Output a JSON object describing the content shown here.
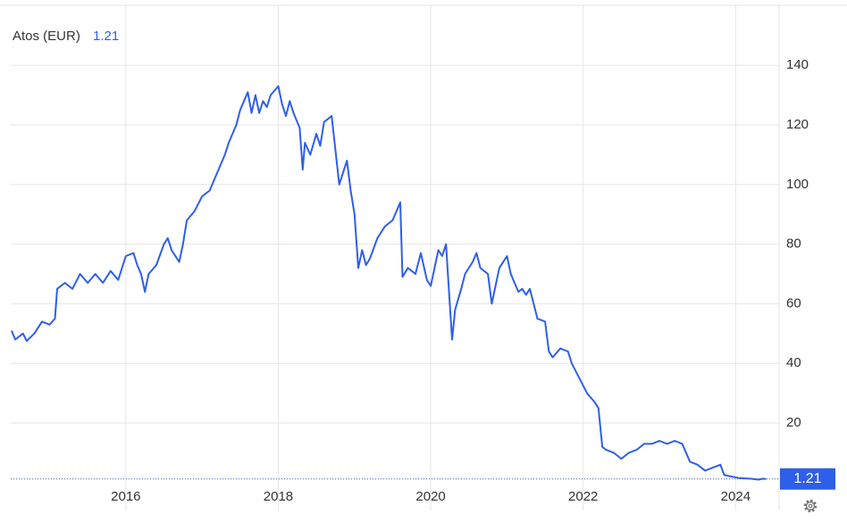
{
  "chart_data": {
    "type": "line",
    "title": "Atos (EUR)",
    "last_value_label": "1.21",
    "xlim": [
      2014.49,
      2024.57
    ],
    "xticks": [
      2016,
      2018,
      2020,
      2022,
      2024
    ],
    "ylim": [
      0,
      160
    ],
    "yticks": [
      20,
      40,
      60,
      80,
      100,
      120,
      140
    ],
    "grid": true,
    "x": [
      2014.5,
      2014.55,
      2014.65,
      2014.7,
      2014.8,
      2014.9,
      2015.0,
      2015.07,
      2015.1,
      2015.2,
      2015.3,
      2015.4,
      2015.5,
      2015.6,
      2015.7,
      2015.8,
      2015.9,
      2016.0,
      2016.1,
      2016.15,
      2016.2,
      2016.25,
      2016.3,
      2016.4,
      2016.5,
      2016.55,
      2016.6,
      2016.7,
      2016.75,
      2016.8,
      2016.9,
      2017.0,
      2017.1,
      2017.2,
      2017.3,
      2017.35,
      2017.45,
      2017.5,
      2017.6,
      2017.65,
      2017.7,
      2017.75,
      2017.8,
      2017.85,
      2017.9,
      2018.0,
      2018.05,
      2018.1,
      2018.15,
      2018.2,
      2018.28,
      2018.32,
      2018.35,
      2018.42,
      2018.5,
      2018.55,
      2018.6,
      2018.7,
      2018.8,
      2018.85,
      2018.9,
      2018.95,
      2019.0,
      2019.05,
      2019.1,
      2019.15,
      2019.2,
      2019.3,
      2019.4,
      2019.5,
      2019.6,
      2019.63,
      2019.7,
      2019.8,
      2019.87,
      2019.95,
      2020.0,
      2020.05,
      2020.1,
      2020.15,
      2020.2,
      2020.25,
      2020.28,
      2020.32,
      2020.4,
      2020.45,
      2020.55,
      2020.6,
      2020.65,
      2020.75,
      2020.8,
      2020.85,
      2020.9,
      2020.95,
      2021.0,
      2021.05,
      2021.1,
      2021.15,
      2021.2,
      2021.25,
      2021.3,
      2021.35,
      2021.4,
      2021.5,
      2021.55,
      2021.6,
      2021.7,
      2021.8,
      2021.85,
      2021.95,
      2022.05,
      2022.15,
      2022.2,
      2022.25,
      2022.3,
      2022.4,
      2022.5,
      2022.6,
      2022.7,
      2022.8,
      2022.9,
      2023.0,
      2023.1,
      2023.2,
      2023.3,
      2023.4,
      2023.5,
      2023.6,
      2023.7,
      2023.8,
      2023.85,
      2023.95,
      2024.05,
      2024.2,
      2024.3,
      2024.35,
      2024.4
    ],
    "series": [
      {
        "name": "Atos (EUR)",
        "color": "#2f5fe8",
        "values": [
          51,
          48,
          50,
          47.5,
          50,
          54,
          53,
          55,
          65,
          67,
          65,
          70,
          67,
          70,
          67,
          71,
          68,
          76,
          77,
          73,
          70,
          64,
          70,
          73,
          80,
          82,
          78,
          74,
          80,
          88,
          91,
          96,
          98,
          104,
          110,
          114,
          120,
          125,
          131,
          124,
          130,
          124,
          128,
          126,
          130,
          133,
          127,
          123,
          128,
          124,
          119,
          105,
          114,
          110,
          117,
          113,
          121,
          123,
          100,
          104,
          108,
          98,
          90,
          72,
          78,
          73,
          75,
          82,
          86,
          88,
          94,
          69,
          72,
          70,
          77,
          68,
          66,
          72,
          78,
          76,
          80,
          60,
          48,
          58,
          65,
          70,
          74,
          77,
          72,
          70,
          60,
          66,
          72,
          74,
          76,
          70,
          67,
          64,
          65,
          63,
          65,
          60,
          55,
          54,
          44,
          42,
          45,
          44,
          40,
          35,
          30,
          27,
          25,
          12,
          11,
          10,
          8,
          10,
          11,
          13,
          13,
          14,
          13,
          14,
          13,
          7,
          6,
          4,
          5,
          6,
          2.5,
          2,
          1.5,
          1.3,
          1.0,
          1.3,
          1.21
        ]
      }
    ]
  }
}
